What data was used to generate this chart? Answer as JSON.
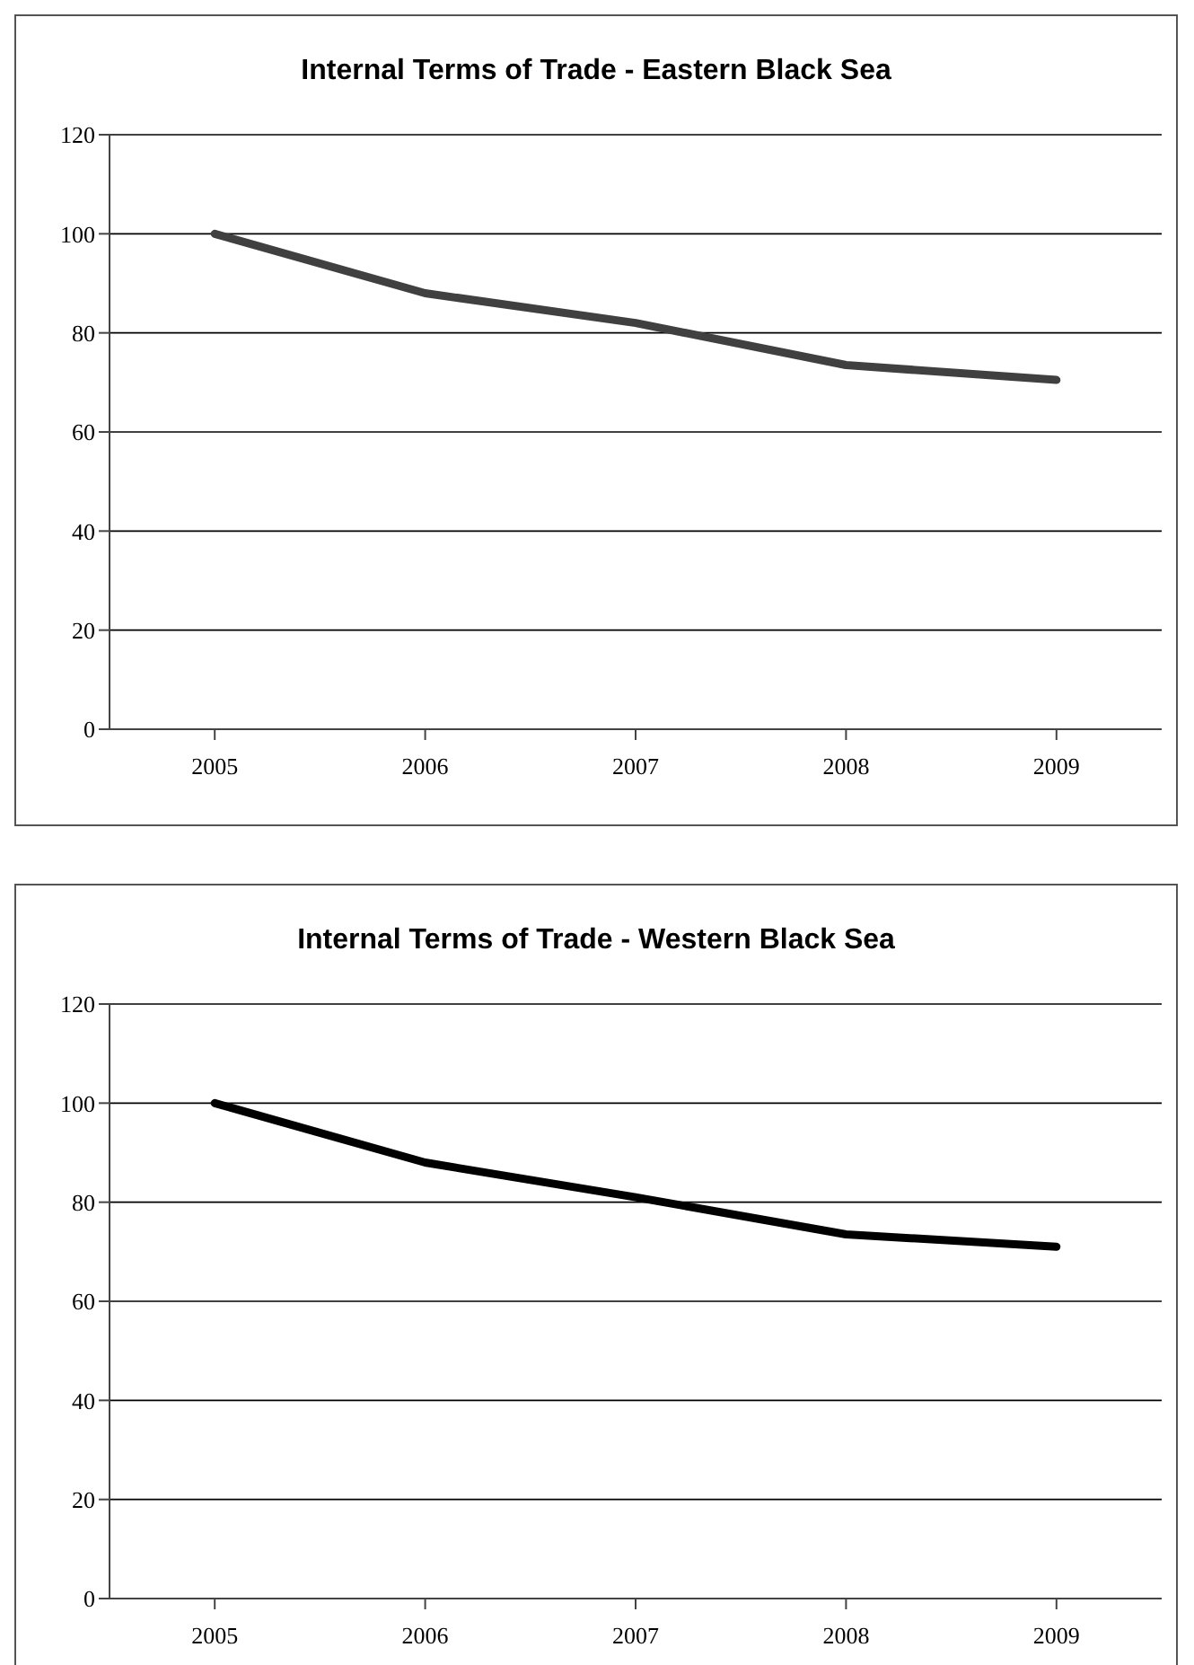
{
  "chart_data": [
    {
      "type": "line",
      "title": "Internal Terms of Trade - Eastern Black Sea",
      "categories": [
        "2005",
        "2006",
        "2007",
        "2008",
        "2009"
      ],
      "series": [
        {
          "color": "#404040",
          "values": [
            100,
            88,
            82,
            73.5,
            70.5
          ]
        }
      ],
      "ylim": [
        0,
        120
      ],
      "yticks": [
        0,
        20,
        40,
        60,
        80,
        100,
        120
      ],
      "grid": "y",
      "legend": false,
      "marker": "none"
    },
    {
      "type": "line",
      "title": "Internal Terms of Trade - Western Black Sea",
      "categories": [
        "2005",
        "2006",
        "2007",
        "2008",
        "2009"
      ],
      "series": [
        {
          "color": "#000000",
          "values": [
            100,
            88,
            81,
            73.5,
            71
          ]
        }
      ],
      "ylim": [
        0,
        120
      ],
      "yticks": [
        0,
        20,
        40,
        60,
        80,
        100,
        120
      ],
      "grid": "y",
      "legend": false,
      "marker": "none"
    }
  ]
}
